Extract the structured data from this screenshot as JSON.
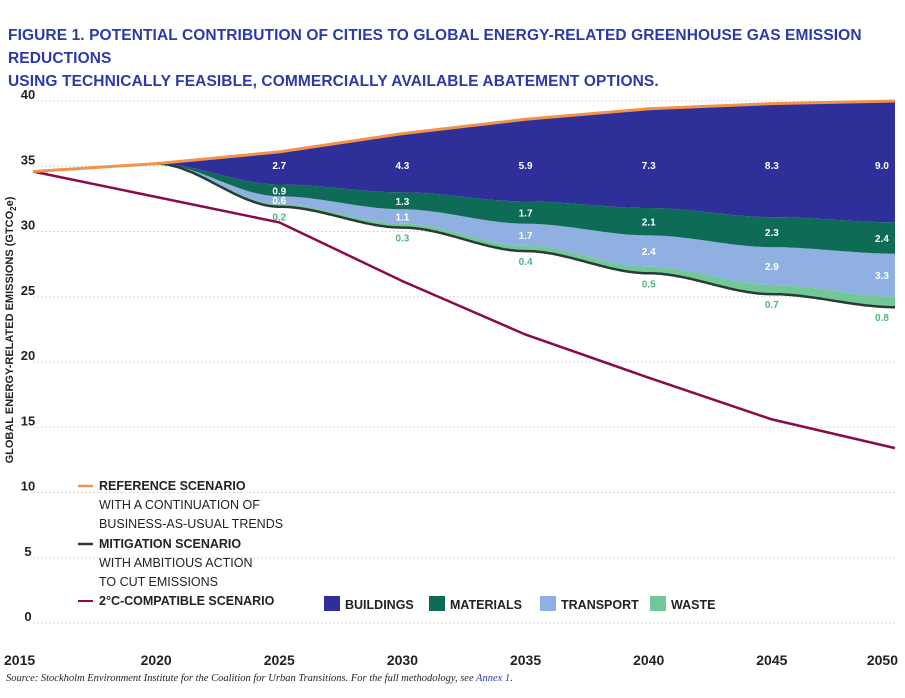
{
  "title": {
    "line1": "FIGURE 1. POTENTIAL CONTRIBUTION OF CITIES TO GLOBAL ENERGY-RELATED GREENHOUSE GAS EMISSION REDUCTIONS",
    "line2": "USING TECHNICALLY FEASIBLE, COMMERCIALLY AVAILABLE ABATEMENT OPTIONS."
  },
  "source": {
    "text": "Source: Stockholm Environment Institute for the Coalition for Urban Transitions. For the full methodology, see ",
    "link": "Annex 1",
    "end": "."
  },
  "colors": {
    "title": "#2b3aa8",
    "reference": "#f0924a",
    "mitigation": "#2a3a36",
    "two_degree": "#8b0a4a",
    "buildings": "#2e2f99",
    "materials": "#0e6b56",
    "transport": "#8fb0e0",
    "waste": "#71c796",
    "waste_label": "#4fb67c",
    "grid": "#cccccc"
  },
  "chart_data": {
    "type": "area",
    "ylabel": "GLOBAL ENERGY-RELATED EMISSIONS (GTCO",
    "ylabel_sub": "2",
    "ylabel_end": "e)",
    "x_ticks": [
      "2015",
      "2020",
      "2025",
      "2030",
      "2035",
      "2040",
      "2045",
      "2050"
    ],
    "y_ticks": [
      "0",
      "5",
      "10",
      "15",
      "20",
      "25",
      "30",
      "35",
      "40"
    ],
    "xlim": [
      2015,
      2050
    ],
    "ylim": [
      0,
      40
    ],
    "grid": true,
    "lines": {
      "reference": {
        "x": [
          2015,
          2020,
          2025,
          2030,
          2035,
          2040,
          2045,
          2050
        ],
        "y": [
          34.6,
          35.2,
          36.1,
          37.5,
          38.6,
          39.4,
          39.8,
          40.0
        ]
      },
      "mitigation": {
        "x": [
          2020,
          2025,
          2030,
          2035,
          2040,
          2045,
          2050
        ],
        "y": [
          35.2,
          31.9,
          30.3,
          28.5,
          26.8,
          25.2,
          24.2
        ]
      },
      "two_degree": {
        "x": [
          2015,
          2025,
          2030,
          2035,
          2040,
          2045,
          2050
        ],
        "y": [
          34.6,
          30.7,
          26.2,
          22.1,
          18.8,
          15.6,
          13.4
        ]
      }
    },
    "series": [
      {
        "name": "WASTE",
        "values": [
          0.2,
          0.3,
          0.4,
          0.5,
          0.7,
          0.8
        ],
        "labels": [
          "0.2",
          "0.3",
          "0.4",
          "0.5",
          "0.7",
          "0.8"
        ]
      },
      {
        "name": "TRANSPORT",
        "values": [
          0.6,
          1.1,
          1.7,
          2.4,
          2.9,
          3.3
        ],
        "labels": [
          "0.6",
          "1.1",
          "1.7",
          "2.4",
          "2.9",
          "3.3"
        ]
      },
      {
        "name": "MATERIALS",
        "values": [
          0.9,
          1.3,
          1.7,
          2.1,
          2.3,
          2.4
        ],
        "labels": [
          "0.9",
          "1.3",
          "1.7",
          "2.1",
          "2.3",
          "2.4"
        ]
      },
      {
        "name": "BUILDINGS",
        "values": [
          2.7,
          4.3,
          5.9,
          7.3,
          8.3,
          9.0
        ],
        "labels": [
          "2.7",
          "4.3",
          "5.9",
          "7.3",
          "8.3",
          "9.0"
        ]
      }
    ],
    "series_x": [
      2025,
      2030,
      2035,
      2040,
      2045,
      2050
    ],
    "legend_scenarios": [
      {
        "key": "reference",
        "bold": "REFERENCE SCENARIO",
        "desc1": "WITH A CONTINUATION OF",
        "desc2": "BUSINESS-AS-USUAL TRENDS"
      },
      {
        "key": "mitigation",
        "bold": "MITIGATION SCENARIO",
        "desc1": "WITH AMBITIOUS ACTION",
        "desc2": "TO CUT EMISSIONS"
      },
      {
        "key": "two_degree",
        "bold": "2°C-COMPATIBLE SCENARIO",
        "desc1": "",
        "desc2": ""
      }
    ],
    "legend_placement": "bottom-left"
  }
}
